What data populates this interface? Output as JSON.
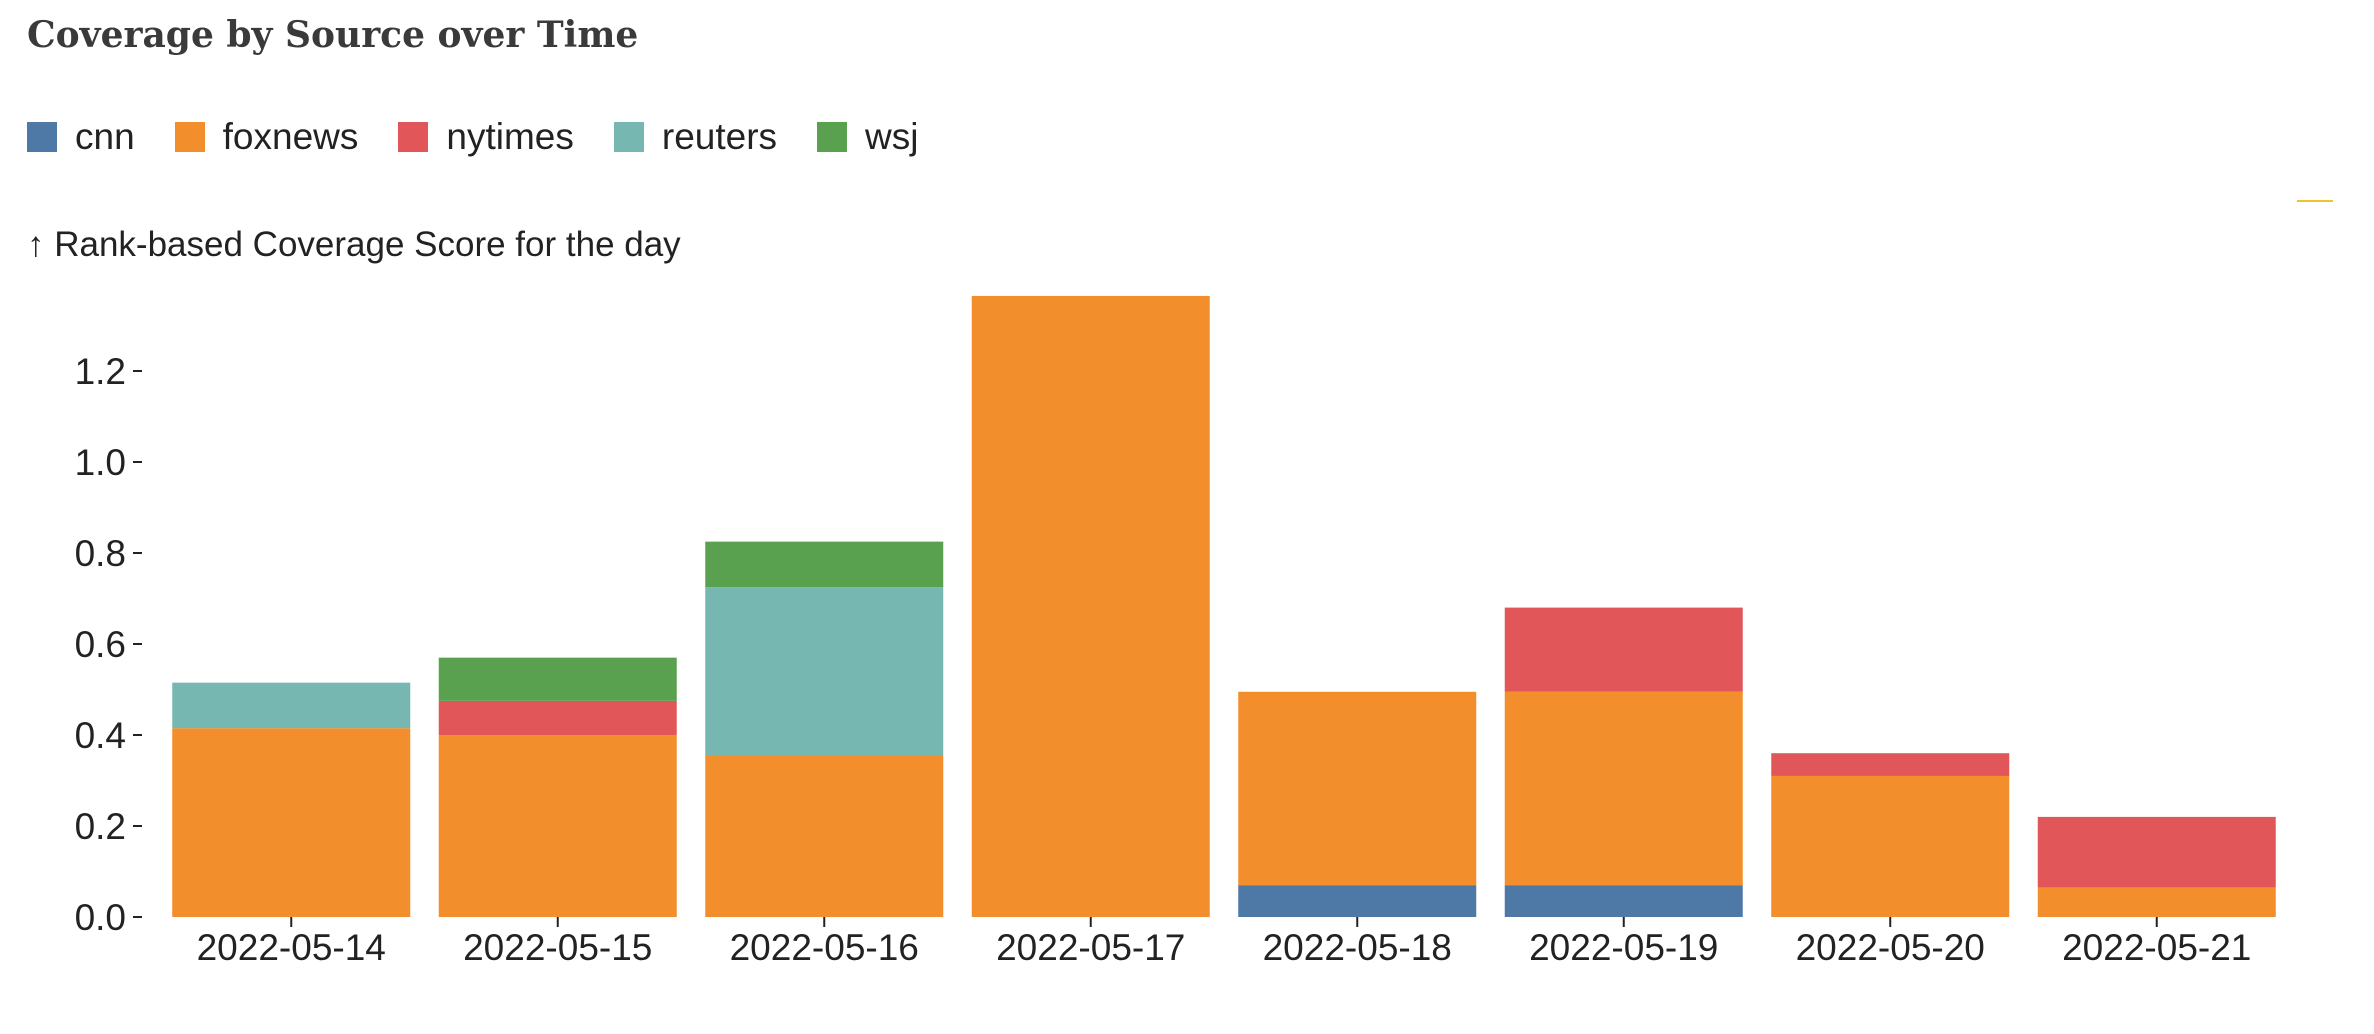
{
  "chart_data": {
    "type": "bar",
    "stacked": true,
    "title": "Coverage by Source over Time",
    "ylabel": "↑ Rank-based Coverage Score for the day",
    "xlabel": "",
    "ylim": [
      0,
      1.36
    ],
    "yticks": [
      {
        "value": 0.0,
        "label": "0.0"
      },
      {
        "value": 0.2,
        "label": "0.2"
      },
      {
        "value": 0.4,
        "label": "0.4"
      },
      {
        "value": 0.6,
        "label": "0.6"
      },
      {
        "value": 0.8,
        "label": "0.8"
      },
      {
        "value": 1.0,
        "label": "1.0"
      },
      {
        "value": 1.2,
        "label": "1.2"
      }
    ],
    "grid": false,
    "legend_position": "top-left",
    "categories": [
      "2022-05-14",
      "2022-05-15",
      "2022-05-16",
      "2022-05-17",
      "2022-05-18",
      "2022-05-19",
      "2022-05-20",
      "2022-05-21"
    ],
    "series": [
      {
        "name": "cnn",
        "color": "#4e79a7",
        "values": [
          0,
          0,
          0,
          0,
          0.07,
          0.07,
          0,
          0
        ]
      },
      {
        "name": "foxnews",
        "color": "#f28e2c",
        "values": [
          0.415,
          0.4,
          0.355,
          1.365,
          0.425,
          0.425,
          0.31,
          0.065
        ]
      },
      {
        "name": "nytimes",
        "color": "#e15759",
        "values": [
          0,
          0.075,
          0,
          0,
          0,
          0.185,
          0.05,
          0.155
        ]
      },
      {
        "name": "reuters",
        "color": "#76b7b2",
        "values": [
          0.1,
          0,
          0.37,
          0,
          0,
          0,
          0,
          0
        ]
      },
      {
        "name": "wsj",
        "color": "#59a14f",
        "values": [
          0,
          0.095,
          0.1,
          0,
          0,
          0,
          0,
          0
        ]
      }
    ]
  },
  "colors": {
    "accent_mark": "#f2c230"
  }
}
